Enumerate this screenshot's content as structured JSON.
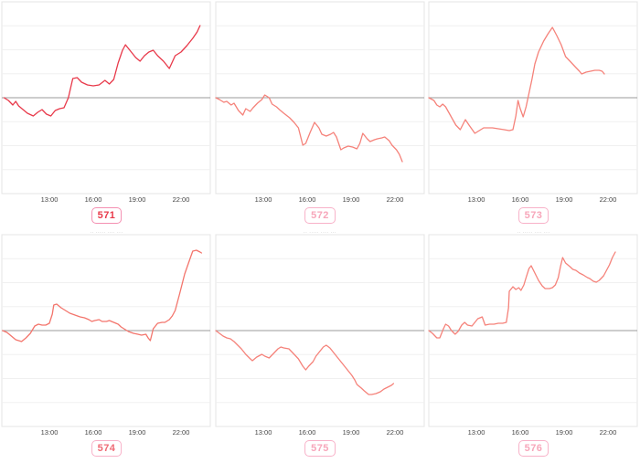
{
  "page": {
    "background": "#ffffff"
  },
  "x_axis": {
    "tick_labels": [
      "13:00",
      "16:00",
      "19:00",
      "22:00"
    ],
    "tick_hours": [
      13,
      16,
      19,
      22
    ],
    "range_hours": [
      9.75,
      24
    ],
    "grid": "horizontal-only"
  },
  "style": {
    "baseline_color": "#9b9b9b",
    "gridline_color": "#f0f0f0",
    "panel_border_color": "#e4e4e4",
    "tick_label_color": "#444444"
  },
  "chart_data": [
    {
      "type": "line",
      "badge_label": "571",
      "title": "",
      "line_color": "#e8394a",
      "badge_text_color": "#e8394a",
      "badge_border_color": "#f48fb1",
      "x_tick_labels": [
        "13:00",
        "16:00",
        "19:00",
        "22:00"
      ],
      "baseline": 0,
      "y_units": "relative change (axis unlabeled)",
      "x_hours": [
        9.9,
        10.2,
        10.5,
        10.7,
        10.9,
        11.2,
        11.5,
        11.9,
        12.2,
        12.5,
        12.8,
        13.1,
        13.4,
        13.7,
        14.0,
        14.3,
        14.6,
        14.9,
        15.2,
        15.6,
        16.0,
        16.4,
        16.8,
        17.1,
        17.4,
        17.7,
        18.0,
        18.2,
        18.5,
        18.9,
        19.2,
        19.5,
        19.8,
        20.1,
        20.4,
        20.8,
        21.2,
        21.6,
        22.0,
        22.4,
        22.8,
        23.1,
        23.3
      ],
      "y_relative": [
        0,
        -3,
        -8,
        -4,
        -9,
        -13,
        -17,
        -20,
        -16,
        -13,
        -18,
        -20,
        -14,
        -12,
        -11,
        0,
        21,
        22,
        17,
        14,
        13,
        14,
        19,
        15,
        20,
        38,
        52,
        58,
        52,
        44,
        40,
        46,
        50,
        52,
        46,
        40,
        32,
        46,
        50,
        57,
        65,
        72,
        79
      ]
    },
    {
      "type": "line",
      "badge_label": "572",
      "title": "·· ····· ···· ···",
      "line_color": "#f5827a",
      "badge_text_color": "#f7a6ba",
      "badge_border_color": "#f8b1c8",
      "x_tick_labels": [
        "13:00",
        "16:00",
        "19:00",
        "22:00"
      ],
      "baseline": 0,
      "y_units": "relative change (axis unlabeled)",
      "x_hours": [
        9.75,
        10.0,
        10.3,
        10.5,
        10.8,
        11.0,
        11.3,
        11.6,
        11.8,
        12.1,
        12.3,
        12.6,
        12.9,
        13.1,
        13.4,
        13.6,
        13.9,
        14.1,
        14.4,
        14.8,
        15.1,
        15.4,
        15.7,
        15.9,
        16.2,
        16.5,
        16.8,
        17.0,
        17.3,
        17.6,
        17.8,
        18.0,
        18.3,
        18.5,
        18.8,
        19.1,
        19.4,
        19.6,
        19.8,
        20.1,
        20.3,
        20.6,
        20.8,
        21.1,
        21.3,
        21.6,
        21.8,
        22.1,
        22.3,
        22.5
      ],
      "y_relative": [
        0,
        -2,
        -5,
        -4,
        -8,
        -6,
        -14,
        -19,
        -12,
        -15,
        -11,
        -6,
        -2,
        3,
        0,
        -7,
        -10,
        -13,
        -17,
        -22,
        -27,
        -33,
        -52,
        -50,
        -38,
        -27,
        -33,
        -40,
        -42,
        -40,
        -38,
        -43,
        -57,
        -55,
        -53,
        -54,
        -56,
        -50,
        -39,
        -45,
        -48,
        -46,
        -45,
        -44,
        -43,
        -47,
        -52,
        -57,
        -62,
        -70
      ]
    },
    {
      "type": "line",
      "badge_label": "573",
      "title": "·· ····· ···· ···",
      "line_color": "#f5827a",
      "badge_text_color": "#f7a6ba",
      "badge_border_color": "#f8b1c8",
      "x_tick_labels": [
        "13:00",
        "16:00",
        "19:00",
        "22:00"
      ],
      "baseline": 0,
      "y_units": "relative change (axis unlabeled)",
      "x_hours": [
        9.75,
        10.1,
        10.3,
        10.5,
        10.7,
        10.9,
        11.25,
        11.6,
        11.9,
        12.25,
        12.5,
        12.9,
        13.2,
        13.5,
        13.8,
        14.1,
        14.5,
        14.9,
        15.25,
        15.5,
        15.7,
        15.85,
        16.0,
        16.2,
        16.4,
        16.6,
        16.8,
        17.0,
        17.25,
        17.6,
        17.9,
        18.2,
        18.5,
        18.8,
        19.1,
        19.4,
        19.75,
        20.05,
        20.2,
        20.5,
        20.8,
        21.1,
        21.4,
        21.6,
        21.75
      ],
      "y_relative": [
        0,
        -3,
        -8,
        -10,
        -7,
        -10,
        -20,
        -30,
        -35,
        -24,
        -30,
        -39,
        -36,
        -33,
        -33,
        -33,
        -34,
        -35,
        -36,
        -35,
        -20,
        -3,
        -12,
        -21,
        -10,
        5,
        20,
        37,
        50,
        62,
        70,
        77,
        68,
        58,
        45,
        40,
        34,
        29,
        26,
        28,
        29,
        30,
        30,
        29,
        26
      ]
    },
    {
      "type": "line",
      "badge_label": "574",
      "title": "·· ····· ···· ···",
      "line_color": "#f3756c",
      "badge_text_color": "#ef6a74",
      "badge_border_color": "#f8b1c8",
      "x_tick_labels": [
        "13:00",
        "16:00",
        "19:00",
        "22:00"
      ],
      "baseline": 0,
      "y_units": "relative change (axis unlabeled)",
      "x_hours": [
        9.8,
        10.1,
        10.4,
        10.7,
        11.1,
        11.4,
        11.7,
        12.0,
        12.25,
        12.5,
        12.75,
        13.0,
        13.2,
        13.3,
        13.5,
        13.8,
        14.1,
        14.4,
        14.75,
        15.1,
        15.4,
        15.7,
        15.9,
        16.1,
        16.4,
        16.6,
        16.9,
        17.1,
        17.4,
        17.7,
        17.9,
        18.2,
        18.4,
        18.75,
        19.05,
        19.3,
        19.6,
        19.75,
        19.9,
        20.1,
        20.4,
        20.7,
        20.9,
        21.2,
        21.4,
        21.6,
        21.9,
        22.25,
        22.6,
        22.8,
        23.05,
        23.3,
        23.4
      ],
      "y_relative": [
        0,
        -2,
        -6,
        -10,
        -12,
        -8,
        -3,
        5,
        7,
        6,
        6,
        8,
        18,
        28,
        29,
        25,
        22,
        19,
        17,
        15,
        14,
        12,
        10,
        11,
        12,
        10,
        10,
        11,
        9,
        7,
        4,
        1,
        -1,
        -3,
        -4,
        -5,
        -4,
        -8,
        -11,
        2,
        8,
        9,
        9,
        12,
        16,
        22,
        40,
        62,
        78,
        87,
        88,
        86,
        85
      ]
    },
    {
      "type": "line",
      "badge_label": "575",
      "title": "·· ····· ···· ···",
      "line_color": "#f5827a",
      "badge_text_color": "#f7a6ba",
      "badge_border_color": "#f8b1c8",
      "x_tick_labels": [
        "13:00",
        "16:00",
        "19:00",
        "22:00"
      ],
      "baseline": 0,
      "y_units": "relative change (axis unlabeled)",
      "x_hours": [
        9.75,
        10.0,
        10.25,
        10.5,
        10.75,
        11.0,
        11.25,
        11.5,
        11.8,
        12.05,
        12.25,
        12.55,
        12.9,
        13.1,
        13.4,
        13.7,
        14.0,
        14.2,
        14.4,
        14.75,
        15.05,
        15.4,
        15.7,
        15.9,
        16.1,
        16.4,
        16.6,
        16.9,
        17.1,
        17.3,
        17.55,
        17.8,
        18.05,
        18.3,
        18.55,
        18.8,
        19.05,
        19.25,
        19.4,
        19.7,
        19.9,
        20.2,
        20.4,
        20.7,
        21.0,
        21.25,
        21.5,
        21.75,
        21.9
      ],
      "y_relative": [
        0,
        -3,
        -6,
        -8,
        -9,
        -12,
        -16,
        -20,
        -26,
        -30,
        -33,
        -29,
        -26,
        -28,
        -30,
        -25,
        -20,
        -18,
        -19,
        -20,
        -25,
        -31,
        -39,
        -43,
        -39,
        -34,
        -28,
        -22,
        -18,
        -16,
        -19,
        -24,
        -29,
        -34,
        -39,
        -44,
        -49,
        -54,
        -59,
        -63,
        -66,
        -70,
        -70,
        -69,
        -67,
        -64,
        -62,
        -60,
        -58
      ]
    },
    {
      "type": "line",
      "badge_label": "576",
      "title": "·· ····· ···· ···",
      "line_color": "#f5827a",
      "badge_text_color": "#f7a6ba",
      "badge_border_color": "#f8b1c8",
      "x_tick_labels": [
        "13:00",
        "16:00",
        "19:00",
        "22:00"
      ],
      "baseline": 0,
      "y_units": "relative change (axis unlabeled)",
      "x_hours": [
        9.75,
        10.0,
        10.3,
        10.5,
        10.75,
        10.9,
        11.1,
        11.3,
        11.55,
        11.75,
        12.0,
        12.2,
        12.4,
        12.7,
        12.9,
        13.1,
        13.4,
        13.6,
        13.9,
        14.2,
        14.5,
        14.8,
        15.05,
        15.2,
        15.25,
        15.4,
        15.5,
        15.7,
        15.9,
        16.05,
        16.25,
        16.4,
        16.6,
        16.75,
        17.0,
        17.25,
        17.5,
        17.7,
        18.0,
        18.2,
        18.4,
        18.6,
        18.75,
        18.9,
        19.1,
        19.4,
        19.6,
        19.8,
        20.05,
        20.3,
        20.6,
        20.75,
        21.0,
        21.2,
        21.4,
        21.7,
        21.9,
        22.1,
        22.3,
        22.5
      ],
      "y_relative": [
        0,
        -3,
        -8,
        -8,
        2,
        7,
        5,
        0,
        -4,
        -1,
        6,
        9,
        6,
        5,
        9,
        13,
        15,
        6,
        7,
        7,
        8,
        8,
        9,
        25,
        43,
        46,
        48,
        45,
        47,
        44,
        50,
        58,
        68,
        71,
        63,
        55,
        49,
        46,
        46,
        47,
        50,
        58,
        70,
        80,
        74,
        70,
        67,
        66,
        63,
        61,
        58,
        57,
        54,
        53,
        55,
        60,
        66,
        72,
        80,
        86
      ]
    }
  ]
}
